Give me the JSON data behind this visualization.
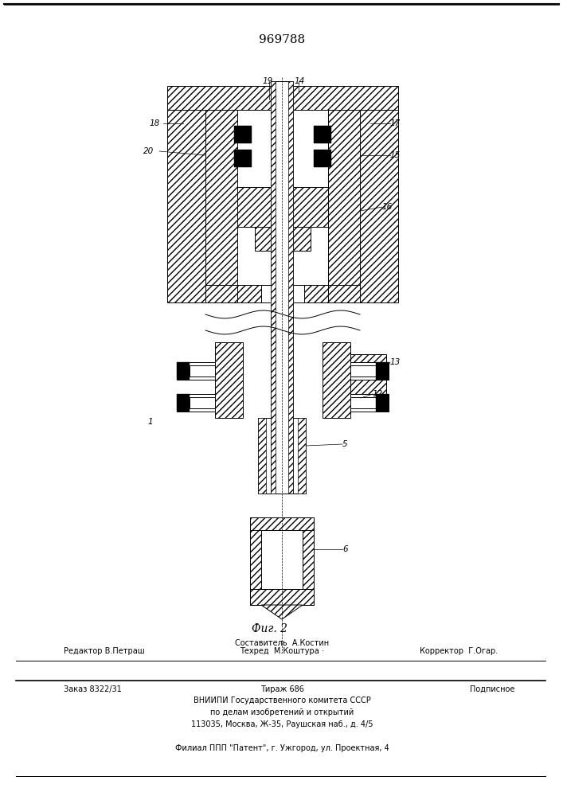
{
  "title": "969788",
  "fig_label": "Фиг. 2",
  "bg_color": "#ffffff",
  "line_color": "#000000",
  "hatch": "////",
  "footer": {
    "line1_center": "Составитель  А.Костин",
    "line2_left": "Редактор В.Петраш",
    "line2_center": "Техред  М.Коштура ·",
    "line2_right": "Корректор  Г.Огар.",
    "line3_left": "Заказ 8322/31",
    "line3_center": "Тираж 686",
    "line3_right": "Подписное",
    "line4": "ВНИИПИ Государственного комитета СССР",
    "line5": "по делам изобретений и открытий",
    "line6": "113035, Москва, Ж-35, Раушская наб., д. 4/5",
    "line7": "Филиал ППП \"Патент\", г. Ужгород, ул. Проектная, 4"
  }
}
